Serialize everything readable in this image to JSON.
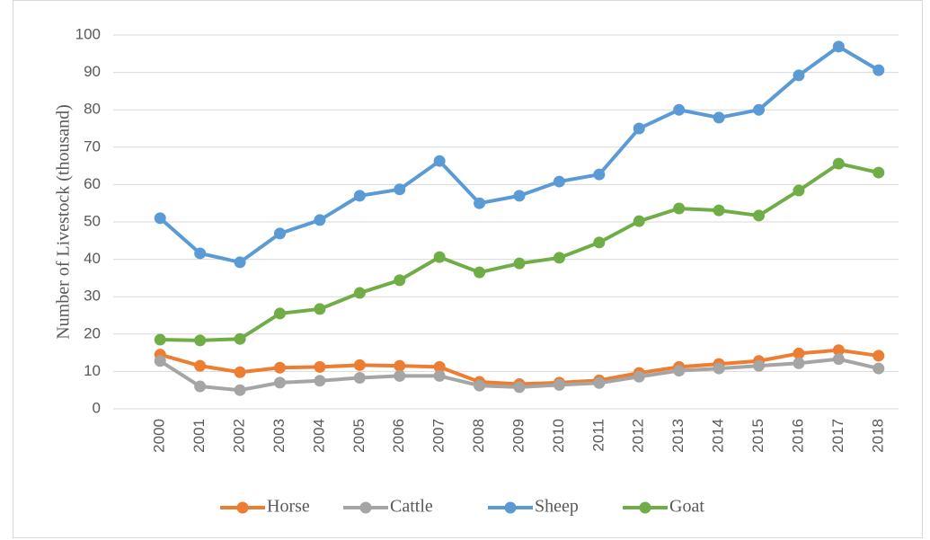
{
  "chart_data": {
    "type": "line",
    "y_label": "Number of Livestock (thousand)",
    "categories": [
      "2000",
      "2001",
      "2002",
      "2003",
      "2004",
      "2005",
      "2006",
      "2007",
      "2008",
      "2009",
      "2010",
      "2011",
      "2012",
      "2013",
      "2014",
      "2015",
      "2016",
      "2017",
      "2018"
    ],
    "series": [
      {
        "name": "Horse",
        "color": "#ed7d31",
        "values": [
          14.5,
          11.5,
          9.8,
          11,
          11.2,
          11.7,
          11.5,
          11.2,
          7.2,
          6.6,
          7,
          7.6,
          9.6,
          11.2,
          12,
          12.8,
          14.8,
          15.7,
          14.2
        ]
      },
      {
        "name": "Cattle",
        "color": "#a5a5a5",
        "values": [
          12.8,
          6,
          5,
          7,
          7.5,
          8.3,
          8.8,
          8.8,
          6.2,
          5.8,
          6.4,
          6.9,
          8.6,
          10.2,
          10.8,
          11.5,
          12.2,
          13.3,
          10.8
        ]
      },
      {
        "name": "Sheep",
        "color": "#5b9bd5",
        "values": [
          51,
          41.6,
          39.2,
          46.9,
          50.5,
          57,
          58.7,
          66.3,
          55,
          57,
          60.8,
          62.7,
          75,
          80,
          77.9,
          80,
          89.2,
          96.9,
          90.6
        ]
      },
      {
        "name": "Goat",
        "color": "#70ad47",
        "values": [
          18.5,
          18.3,
          18.7,
          25.5,
          26.7,
          31,
          34.4,
          40.6,
          36.5,
          38.9,
          40.4,
          44.5,
          50.2,
          53.6,
          53.1,
          51.7,
          58.4,
          65.6,
          63.2
        ]
      }
    ],
    "ylim": [
      0,
      100
    ],
    "yticks": [
      0,
      10,
      20,
      30,
      40,
      50,
      60,
      70,
      80,
      90,
      100
    ],
    "grid": true,
    "legend": "bottom"
  }
}
